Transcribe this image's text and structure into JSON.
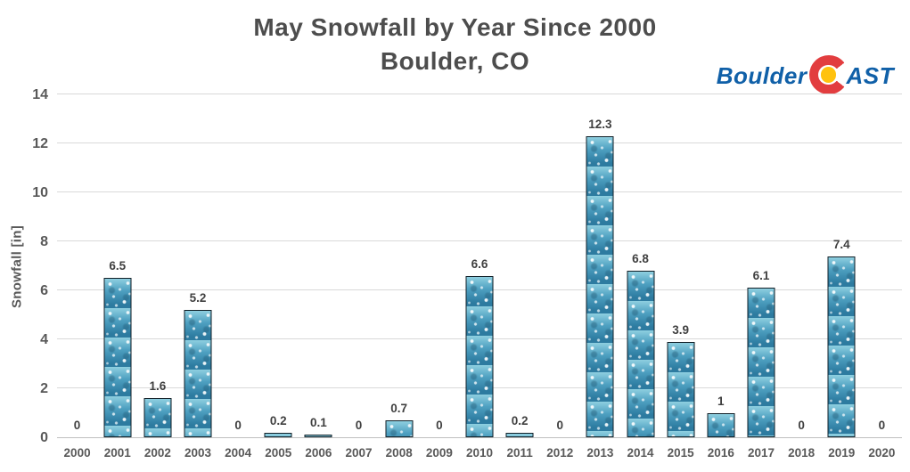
{
  "title": {
    "line1": "May Snowfall by Year Since 2000",
    "line2": "Boulder, CO"
  },
  "logo": {
    "prefix": "Boulder",
    "suffix": "AST",
    "icon": "colorado-c-icon"
  },
  "y_axis": {
    "title": "Snowfall [in]",
    "ticks": [
      0,
      2,
      4,
      6,
      8,
      10,
      12,
      14
    ]
  },
  "chart_data": {
    "type": "bar",
    "title": "May Snowfall by Year Since 2000",
    "subtitle": "Boulder, CO",
    "xlabel": "",
    "ylabel": "Snowfall [in]",
    "ylim": [
      0,
      14
    ],
    "grid": true,
    "legend": false,
    "categories": [
      "2000",
      "2001",
      "2002",
      "2003",
      "2004",
      "2005",
      "2006",
      "2007",
      "2008",
      "2009",
      "2010",
      "2011",
      "2012",
      "2013",
      "2014",
      "2015",
      "2016",
      "2017",
      "2018",
      "2019",
      "2020"
    ],
    "values": [
      0,
      6.5,
      1.6,
      5.2,
      0,
      0.2,
      0.1,
      0,
      0.7,
      0,
      6.6,
      0.2,
      0,
      12.3,
      6.8,
      3.9,
      1,
      6.1,
      0,
      7.4,
      0
    ],
    "labels": [
      "0",
      "6.5",
      "1.6",
      "5.2",
      "0",
      "0.2",
      "0.1",
      "0",
      "0.7",
      "0",
      "6.6",
      "0.2",
      "0",
      "12.3",
      "6.8",
      "3.9",
      "1",
      "6.1",
      "0",
      "7.4",
      "0"
    ]
  },
  "colors": {
    "background": "#ffffff",
    "title_text": "#4d4d4d",
    "axis_text": "#595959",
    "data_label_text": "#404040",
    "gridline": "#d9d9d9",
    "axis_line": "#bfbfbf",
    "bar_fill_light": "#8ecfe0",
    "bar_fill_mid": "#4d9fc0",
    "bar_fill_dark": "#2d7ba0",
    "bar_border": "#101f27",
    "logo_blue": "#1060a8",
    "logo_red": "#e23d3f",
    "logo_gold": "#ffc20e"
  }
}
